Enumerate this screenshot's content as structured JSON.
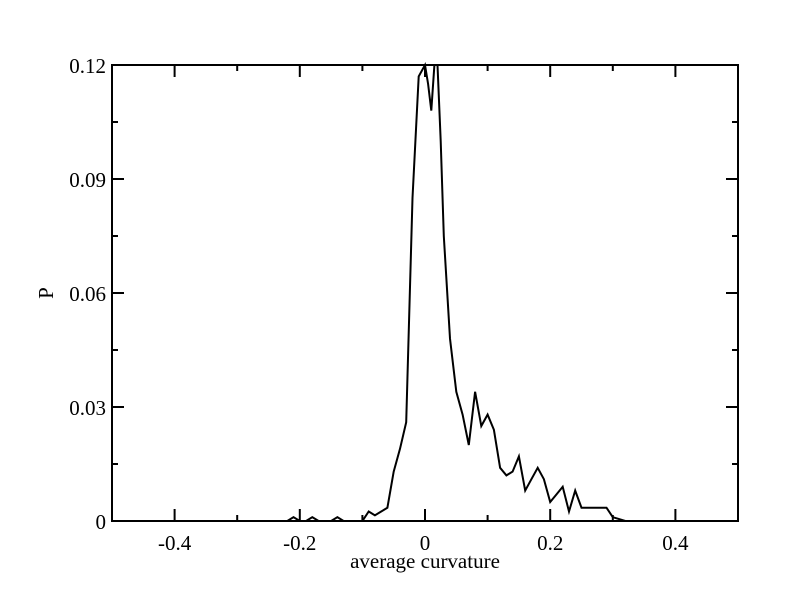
{
  "chart_data": {
    "type": "line",
    "title": "",
    "xlabel": "average curvature",
    "ylabel": "P",
    "xlim": [
      -0.5,
      0.5
    ],
    "ylim": [
      0,
      0.12
    ],
    "x_ticks": [
      -0.4,
      -0.2,
      0,
      0.2,
      0.4
    ],
    "x_tick_labels": [
      "-0.4",
      "-0.2",
      "0",
      "0.2",
      "0.4"
    ],
    "y_ticks": [
      0,
      0.03,
      0.06,
      0.09,
      0.12
    ],
    "y_tick_labels": [
      "0",
      "0.03",
      "0.06",
      "0.09",
      "0.12"
    ],
    "grid": false,
    "line_color": "#000000",
    "series": [
      {
        "x": [
          -0.5,
          -0.22,
          -0.21,
          -0.2,
          -0.19,
          -0.18,
          -0.17,
          -0.16,
          -0.15,
          -0.14,
          -0.13,
          -0.12,
          -0.1,
          -0.09,
          -0.08,
          -0.07,
          -0.06,
          -0.05,
          -0.04,
          -0.03,
          -0.02,
          -0.01,
          0.0,
          0.005,
          0.01,
          0.015,
          0.02,
          0.025,
          0.03,
          0.04,
          0.05,
          0.06,
          0.07,
          0.08,
          0.09,
          0.1,
          0.11,
          0.12,
          0.13,
          0.14,
          0.15,
          0.16,
          0.17,
          0.18,
          0.19,
          0.2,
          0.21,
          0.22,
          0.23,
          0.24,
          0.25,
          0.26,
          0.27,
          0.28,
          0.29,
          0.3,
          0.31,
          0.32,
          0.5
        ],
        "y": [
          0,
          0,
          0.001,
          0,
          0,
          0.001,
          0,
          0,
          0,
          0.001,
          0,
          0,
          0,
          0.0025,
          0.0015,
          0.0025,
          0.0035,
          0.013,
          0.019,
          0.026,
          0.085,
          0.117,
          0.12,
          0.115,
          0.108,
          0.12,
          0.12,
          0.1,
          0.075,
          0.048,
          0.034,
          0.028,
          0.02,
          0.034,
          0.025,
          0.028,
          0.024,
          0.014,
          0.012,
          0.013,
          0.017,
          0.008,
          0.011,
          0.014,
          0.011,
          0.005,
          0.007,
          0.009,
          0.0025,
          0.008,
          0.0035,
          0.0035,
          0.0035,
          0.0035,
          0.0035,
          0.001,
          0.0005,
          0,
          0
        ]
      }
    ]
  }
}
